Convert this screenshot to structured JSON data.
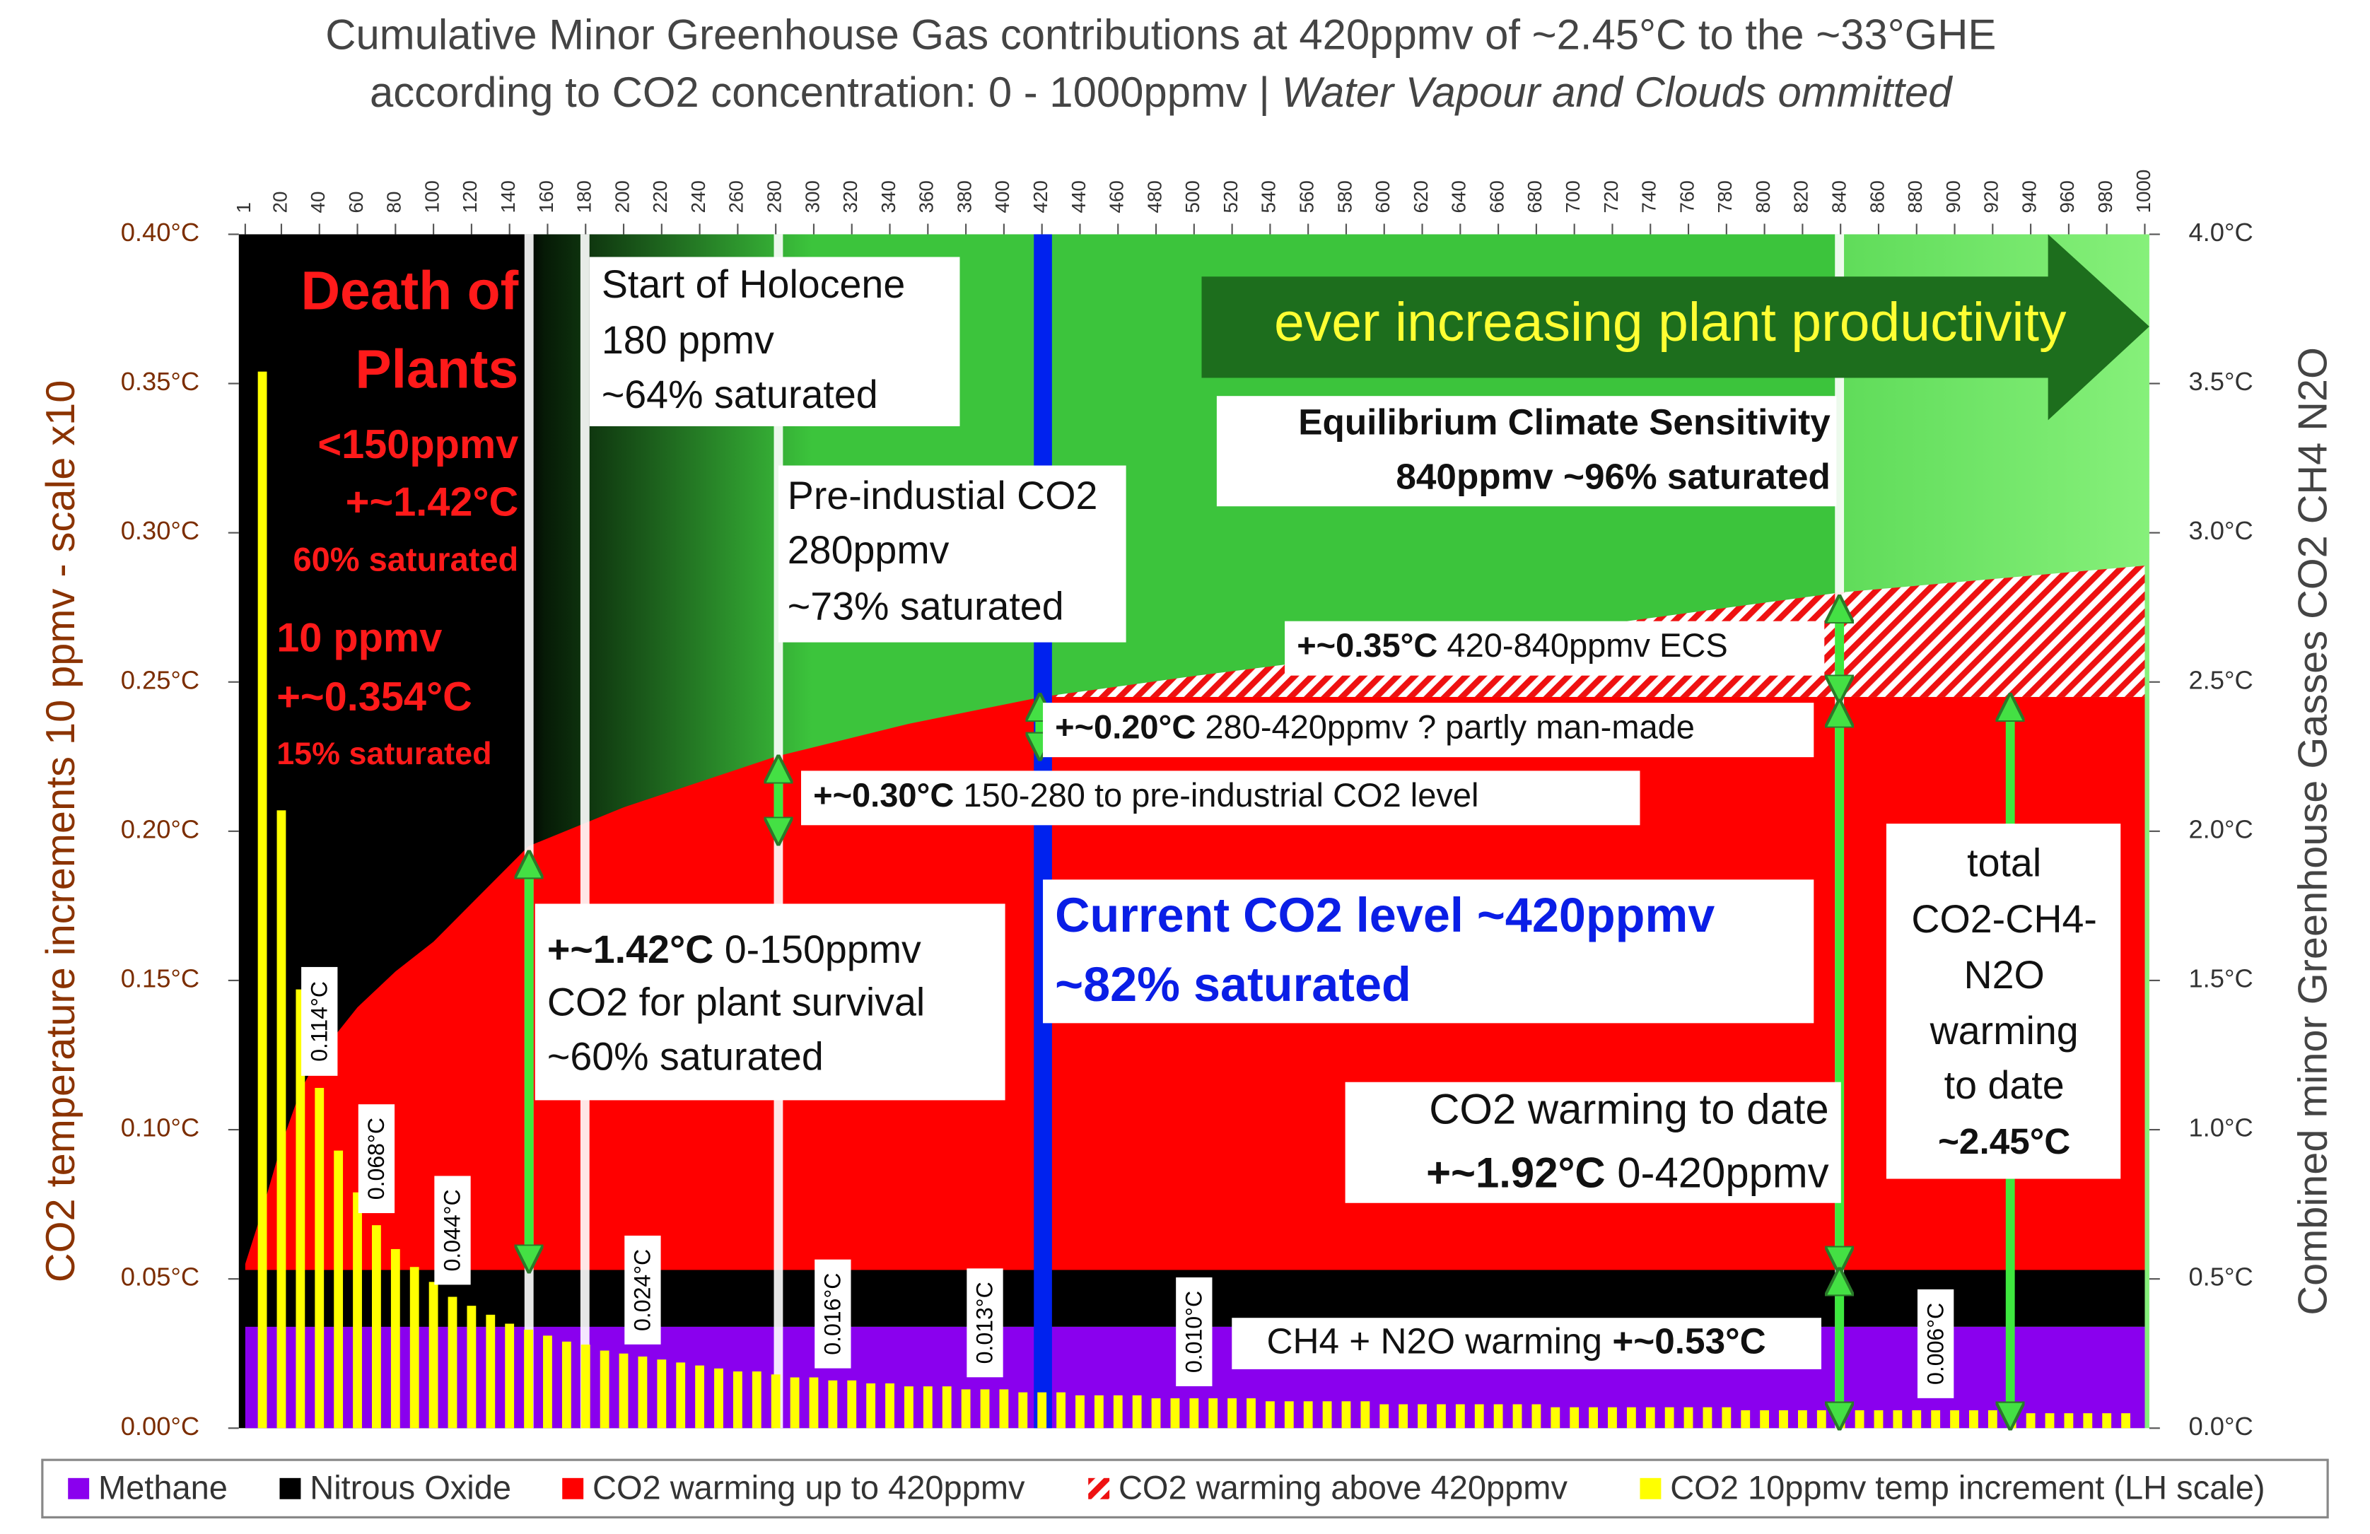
{
  "chart_data": {
    "type": "combo",
    "title": "Cumulative Minor Greenhouse Gas contributions at 420ppmv of ~2.45°C to the ~33°GHE",
    "subtitle": "according to CO2 concentration:  0 - 1000ppmv  |",
    "subtitle_note": "Water Vapour and Clouds ommitted",
    "y_label": "CO2 temperature increments  10 ppmv - scale x10",
    "y2_label": "Combined minor Greenhouse Gasses CO2  CH4 N2O",
    "xlim": [
      0,
      1000
    ],
    "xticks": [
      1,
      20,
      40,
      60,
      80,
      100,
      120,
      140,
      160,
      180,
      200,
      220,
      240,
      260,
      280,
      300,
      320,
      340,
      360,
      380,
      400,
      420,
      440,
      460,
      480,
      500,
      520,
      540,
      560,
      580,
      600,
      620,
      640,
      660,
      680,
      700,
      720,
      740,
      760,
      780,
      800,
      820,
      840,
      860,
      880,
      900,
      920,
      940,
      960,
      980,
      1000
    ],
    "ylim": [
      0,
      0.4
    ],
    "yticks": [
      {
        "value": 0,
        "label": "0.00°C"
      },
      {
        "value": 0.05,
        "label": "0.05°C"
      },
      {
        "value": 0.1,
        "label": "0.10°C"
      },
      {
        "value": 0.15,
        "label": "0.15°C"
      },
      {
        "value": 0.2,
        "label": "0.20°C"
      },
      {
        "value": 0.25,
        "label": "0.25°C"
      },
      {
        "value": 0.3,
        "label": "0.30°C"
      },
      {
        "value": 0.35,
        "label": "0.35°C"
      },
      {
        "value": 0.4,
        "label": "0.40°C"
      }
    ],
    "y2lim": [
      0,
      4
    ],
    "y2ticks": [
      {
        "value": 0,
        "label": "0.0°C"
      },
      {
        "value": 0.5,
        "label": "0.5°C"
      },
      {
        "value": 1,
        "label": "1.0°C"
      },
      {
        "value": 1.5,
        "label": "1.5°C"
      },
      {
        "value": 2,
        "label": "2.0°C"
      },
      {
        "value": 2.5,
        "label": "2.5°C"
      },
      {
        "value": 3,
        "label": "3.0°C"
      },
      {
        "value": 3.5,
        "label": "3.5°C"
      },
      {
        "value": 4,
        "label": "4.0°C"
      }
    ],
    "legend": "bottom",
    "series": [
      {
        "name": "Methane",
        "type": "area",
        "axis": "y2",
        "color": "#8a00ee",
        "x": [
          1,
          1000
        ],
        "values": [
          0.34,
          0.34
        ]
      },
      {
        "name": "Nitrous Oxide",
        "type": "area",
        "axis": "y2",
        "color": "#000000",
        "x": [
          1,
          1000
        ],
        "values": [
          0.19,
          0.19
        ]
      },
      {
        "name": "CO2 warming up to 420ppmv",
        "type": "area",
        "axis": "y2",
        "color": "#ff0000",
        "x": [
          1,
          10,
          20,
          30,
          40,
          60,
          80,
          100,
          150,
          200,
          280,
          350,
          420,
          1000
        ],
        "values": [
          0.02,
          0.2,
          0.42,
          0.6,
          0.72,
          0.88,
          1.0,
          1.1,
          1.42,
          1.55,
          1.72,
          1.83,
          1.92,
          1.92
        ]
      },
      {
        "name": "CO2 warming above 420ppmv",
        "type": "area",
        "axis": "y2",
        "color": "#ee1111",
        "hatch": true,
        "x": [
          420,
          500,
          600,
          700,
          840,
          1000
        ],
        "values": [
          0,
          0.07,
          0.15,
          0.23,
          0.35,
          0.44
        ]
      },
      {
        "name": "CO2 10ppmv temp increment (LH scale)",
        "type": "bar",
        "axis": "y",
        "color": "#ffff00",
        "x": [
          10,
          20,
          30,
          40,
          50,
          60,
          70,
          80,
          90,
          100,
          110,
          120,
          130,
          140,
          150,
          160,
          170,
          180,
          190,
          200,
          210,
          220,
          230,
          240,
          250,
          260,
          270,
          280,
          290,
          300,
          310,
          320,
          330,
          340,
          350,
          360,
          370,
          380,
          390,
          400,
          410,
          420,
          430,
          440,
          450,
          460,
          470,
          480,
          490,
          500,
          510,
          520,
          530,
          540,
          550,
          560,
          570,
          580,
          590,
          600,
          610,
          620,
          630,
          640,
          650,
          660,
          670,
          680,
          690,
          700,
          710,
          720,
          730,
          740,
          750,
          760,
          770,
          780,
          790,
          800,
          810,
          820,
          830,
          840,
          850,
          860,
          870,
          880,
          890,
          900,
          910,
          920,
          930,
          940,
          950,
          960,
          970,
          980,
          990
        ],
        "values": [
          0.354,
          0.207,
          0.147,
          0.114,
          0.093,
          0.079,
          0.068,
          0.06,
          0.054,
          0.049,
          0.044,
          0.041,
          0.038,
          0.035,
          0.033,
          0.031,
          0.029,
          0.028,
          0.026,
          0.025,
          0.024,
          0.023,
          0.022,
          0.021,
          0.02,
          0.019,
          0.019,
          0.018,
          0.017,
          0.017,
          0.016,
          0.016,
          0.015,
          0.015,
          0.014,
          0.014,
          0.014,
          0.013,
          0.013,
          0.013,
          0.012,
          0.012,
          0.012,
          0.011,
          0.011,
          0.011,
          0.011,
          0.01,
          0.01,
          0.01,
          0.01,
          0.01,
          0.01,
          0.009,
          0.009,
          0.009,
          0.009,
          0.009,
          0.009,
          0.008,
          0.008,
          0.008,
          0.008,
          0.008,
          0.008,
          0.008,
          0.008,
          0.008,
          0.007,
          0.007,
          0.007,
          0.007,
          0.007,
          0.007,
          0.007,
          0.007,
          0.007,
          0.007,
          0.006,
          0.006,
          0.006,
          0.006,
          0.006,
          0.006,
          0.006,
          0.006,
          0.006,
          0.006,
          0.006,
          0.006,
          0.006,
          0.006,
          0.005,
          0.005,
          0.005,
          0.005,
          0.005,
          0.005,
          0.005
        ],
        "value_labels": [
          null,
          null,
          null,
          "0.114°C",
          null,
          null,
          "0.068°C",
          null,
          null,
          null,
          "0.044°C",
          null,
          null,
          null,
          null,
          null,
          null,
          null,
          null,
          null,
          "0.024°C",
          null,
          null,
          null,
          null,
          null,
          null,
          null,
          null,
          null,
          "0.016°C",
          null,
          null,
          null,
          null,
          null,
          null,
          null,
          "0.013°C",
          null,
          null,
          null,
          null,
          null,
          null,
          null,
          null,
          null,
          null,
          "0.010°C",
          null,
          null,
          null,
          null,
          null,
          null,
          null,
          null,
          null,
          null,
          null,
          null,
          null,
          null,
          null,
          null,
          null,
          null,
          null,
          null,
          null,
          null,
          null,
          null,
          null,
          null,
          null,
          null,
          null,
          null,
          null,
          null,
          null,
          null,
          null,
          null,
          null,
          null,
          "0.006°C",
          null,
          null,
          null,
          null,
          null,
          null,
          null,
          null,
          null,
          null
        ]
      }
    ],
    "annotations": [
      {
        "lines": [
          "Death of",
          "Plants"
        ]
      },
      {
        "lines": [
          "<150ppmv",
          "+~1.42°C",
          "60% saturated"
        ]
      },
      {
        "lines": [
          "10 ppmv",
          "+~0.354°C",
          "15% saturated"
        ]
      },
      {
        "lines": [
          "Start of Holocene",
          "180 ppmv",
          "~64% saturated"
        ]
      },
      {
        "lines": [
          "Pre-industial CO2",
          "280ppmv",
          "~73% saturated"
        ]
      },
      {
        "lines": [
          "ever increasing plant productivity"
        ]
      },
      {
        "lines": [
          "Equilibrium Climate Sensitivity",
          "840ppmv ~96% saturated"
        ]
      },
      {
        "lines": [
          "+~0.35°C 420-840ppmv ECS"
        ]
      },
      {
        "lines": [
          "+~0.20°C 280-420ppmv ? partly man-made"
        ]
      },
      {
        "lines": [
          "+~0.30°C 150-280 to pre-industrial CO2 level"
        ]
      },
      {
        "lines": [
          "+~1.42°C 0-150ppmv",
          "CO2 for plant survival",
          "~60% saturated"
        ]
      },
      {
        "lines": [
          "Current CO2 level ~420ppmv",
          "~82% saturated"
        ]
      },
      {
        "lines": [
          "CO2 warming to date",
          "+~1.92°C 0-420ppmv"
        ]
      },
      {
        "lines": [
          "total",
          "CO2-CH4-",
          "N2O",
          "warming",
          "to date",
          "~2.45°C"
        ]
      },
      {
        "lines": [
          "CH4 + N2O warming +~0.53°C"
        ]
      }
    ]
  }
}
